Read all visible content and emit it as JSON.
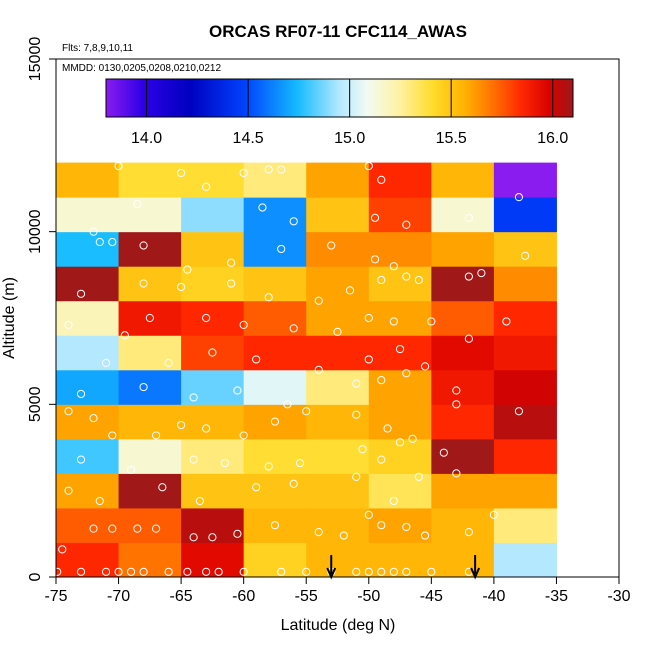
{
  "chart_data": {
    "type": "heatmap",
    "title": "ORCAS RF07-11 CFC114_AWAS",
    "notes": [
      "Flts: 7,8,9,10,11",
      "MMDD: 0130,0205,0208,0210,0212"
    ],
    "xlabel": "Latitude (deg N)",
    "ylabel": "Altitude (m)",
    "xlim": [
      -75,
      -30
    ],
    "ylim": [
      0,
      15000
    ],
    "xticks": [
      -75,
      -70,
      -65,
      -60,
      -55,
      -50,
      -45,
      -40,
      -35,
      -30
    ],
    "xtick_labels": [
      "-75",
      "-70",
      "-65",
      "-60",
      "-55",
      "-50",
      "-45",
      "-40",
      "-35",
      "-30"
    ],
    "yticks": [
      0,
      5000,
      10000,
      15000
    ],
    "ytick_labels": [
      "0",
      "5000",
      "10000",
      "15000"
    ],
    "colorbar": {
      "range": [
        13.8,
        16.1
      ],
      "ticks": [
        14.0,
        14.5,
        15.0,
        15.5,
        16.0
      ],
      "tick_labels": [
        "14.0",
        "14.5",
        "15.0",
        "15.5",
        "16.0"
      ]
    },
    "x_bins": [
      -75,
      -70,
      -65,
      -60,
      -55,
      -50,
      -45,
      -40,
      -35
    ],
    "y_bins": [
      0,
      1000,
      2000,
      3000,
      4000,
      5000,
      6000,
      7000,
      8000,
      9000,
      10000,
      11000,
      12000
    ],
    "cells": [
      [
        15.85,
        15.7,
        15.95,
        15.45,
        15.55,
        15.55,
        15.55,
        14.95
      ],
      [
        15.75,
        15.75,
        16.05,
        15.55,
        15.55,
        15.6,
        15.55,
        15.3
      ],
      [
        15.6,
        16.1,
        15.5,
        15.5,
        15.5,
        15.35,
        15.6,
        15.6
      ],
      [
        14.8,
        15.15,
        15.3,
        15.4,
        15.4,
        15.45,
        16.1,
        15.85
      ],
      [
        15.6,
        15.55,
        15.55,
        15.6,
        15.55,
        15.6,
        15.85,
        16.05
      ],
      [
        14.7,
        14.6,
        14.85,
        15.05,
        15.3,
        15.6,
        15.9,
        16.0
      ],
      [
        14.95,
        15.3,
        15.8,
        15.85,
        15.85,
        15.85,
        15.95,
        15.9
      ],
      [
        15.2,
        15.9,
        15.85,
        15.75,
        15.6,
        15.6,
        15.75,
        15.85
      ],
      [
        16.1,
        15.5,
        15.45,
        15.5,
        15.6,
        15.5,
        16.1,
        15.65
      ],
      [
        14.75,
        16.1,
        15.5,
        14.65,
        15.65,
        15.65,
        15.6,
        15.5
      ],
      [
        15.15,
        15.15,
        14.9,
        14.65,
        15.5,
        15.8,
        15.15,
        14.45
      ],
      [
        15.55,
        15.4,
        15.4,
        15.3,
        15.6,
        15.85,
        15.55,
        13.8
      ]
    ],
    "observations": [
      [
        -74.9,
        150
      ],
      [
        -73.0,
        150
      ],
      [
        -71.0,
        150
      ],
      [
        -70.0,
        150
      ],
      [
        -69.0,
        150
      ],
      [
        -68.0,
        150
      ],
      [
        -66.0,
        150
      ],
      [
        -64.5,
        150
      ],
      [
        -63.0,
        150
      ],
      [
        -62.0,
        150
      ],
      [
        -60.0,
        150
      ],
      [
        -57.0,
        150
      ],
      [
        -55.0,
        150
      ],
      [
        -53.0,
        150
      ],
      [
        -51.0,
        150
      ],
      [
        -50.0,
        150
      ],
      [
        -49.0,
        150
      ],
      [
        -48.0,
        150
      ],
      [
        -47.0,
        150
      ],
      [
        -45.0,
        150
      ],
      [
        -42.0,
        150
      ],
      [
        -74.5,
        800
      ],
      [
        -72.0,
        1400
      ],
      [
        -70.5,
        1400
      ],
      [
        -68.5,
        1400
      ],
      [
        -67.0,
        1400
      ],
      [
        -64.0,
        1150
      ],
      [
        -62.5,
        1150
      ],
      [
        -60.5,
        1250
      ],
      [
        -57.5,
        1500
      ],
      [
        -54.0,
        1300
      ],
      [
        -52.0,
        1200
      ],
      [
        -50.0,
        1800
      ],
      [
        -49.0,
        1500
      ],
      [
        -47.0,
        1450
      ],
      [
        -45.5,
        1200
      ],
      [
        -42.0,
        1300
      ],
      [
        -40.0,
        1800
      ],
      [
        -74.0,
        2500
      ],
      [
        -71.5,
        2200
      ],
      [
        -66.5,
        2600
      ],
      [
        -63.5,
        2200
      ],
      [
        -59.0,
        2600
      ],
      [
        -56.0,
        2700
      ],
      [
        -51.0,
        2900
      ],
      [
        -48.0,
        2200
      ],
      [
        -46.0,
        2900
      ],
      [
        -43.0,
        3000
      ],
      [
        -73.0,
        3400
      ],
      [
        -69.0,
        3100
      ],
      [
        -64.0,
        3400
      ],
      [
        -61.5,
        3300
      ],
      [
        -58.0,
        3200
      ],
      [
        -55.5,
        3300
      ],
      [
        -50.5,
        3700
      ],
      [
        -49.0,
        3400
      ],
      [
        -47.5,
        3900
      ],
      [
        -44.0,
        3600
      ],
      [
        -74.0,
        4800
      ],
      [
        -72.0,
        4600
      ],
      [
        -70.5,
        4100
      ],
      [
        -67.0,
        4100
      ],
      [
        -65.0,
        4400
      ],
      [
        -63.0,
        4300
      ],
      [
        -60.0,
        4100
      ],
      [
        -57.5,
        4500
      ],
      [
        -55.0,
        4800
      ],
      [
        -51.0,
        4700
      ],
      [
        -48.5,
        4300
      ],
      [
        -46.5,
        4000
      ],
      [
        -43.0,
        5000
      ],
      [
        -38.0,
        4800
      ],
      [
        -73.0,
        5300
      ],
      [
        -68.0,
        5500
      ],
      [
        -64.0,
        5200
      ],
      [
        -60.5,
        5400
      ],
      [
        -56.5,
        5000
      ],
      [
        -51.0,
        5600
      ],
      [
        -49.0,
        5700
      ],
      [
        -47.0,
        5900
      ],
      [
        -43.0,
        5400
      ],
      [
        -71.0,
        6200
      ],
      [
        -66.0,
        6200
      ],
      [
        -62.5,
        6500
      ],
      [
        -59.0,
        6300
      ],
      [
        -54.0,
        6000
      ],
      [
        -50.0,
        6300
      ],
      [
        -47.5,
        6600
      ],
      [
        -45.5,
        6100
      ],
      [
        -74.0,
        7300
      ],
      [
        -69.5,
        7000
      ],
      [
        -67.5,
        7500
      ],
      [
        -63.0,
        7500
      ],
      [
        -60.0,
        7300
      ],
      [
        -56.0,
        7200
      ],
      [
        -52.5,
        7100
      ],
      [
        -50.0,
        7500
      ],
      [
        -48.0,
        7400
      ],
      [
        -45.0,
        7400
      ],
      [
        -42.0,
        6900
      ],
      [
        -39.0,
        7400
      ],
      [
        -73.0,
        8200
      ],
      [
        -68.0,
        8500
      ],
      [
        -65.0,
        8400
      ],
      [
        -61.0,
        8500
      ],
      [
        -58.0,
        8100
      ],
      [
        -54.0,
        8000
      ],
      [
        -51.5,
        8300
      ],
      [
        -49.0,
        8600
      ],
      [
        -47.0,
        8700
      ],
      [
        -46.0,
        8600
      ],
      [
        -42.0,
        8700
      ],
      [
        -41.0,
        8800
      ],
      [
        -71.5,
        9700
      ],
      [
        -70.5,
        9700
      ],
      [
        -68.0,
        9600
      ],
      [
        -64.5,
        8900
      ],
      [
        -61.0,
        9100
      ],
      [
        -57.0,
        9500
      ],
      [
        -53.0,
        9600
      ],
      [
        -49.5,
        9200
      ],
      [
        -48.0,
        9000
      ],
      [
        -37.5,
        9300
      ],
      [
        -72.0,
        10000
      ],
      [
        -68.5,
        10800
      ],
      [
        -63.0,
        11300
      ],
      [
        -58.5,
        10700
      ],
      [
        -56.0,
        10300
      ],
      [
        -49.5,
        10400
      ],
      [
        -47.0,
        10200
      ],
      [
        -42.0,
        10400
      ],
      [
        -70.0,
        11900
      ],
      [
        -65.0,
        11700
      ],
      [
        -60.0,
        11700
      ],
      [
        -58.0,
        11800
      ],
      [
        -57.0,
        11800
      ],
      [
        -50.0,
        11900
      ],
      [
        -49.0,
        11500
      ],
      [
        -38.0,
        11000
      ]
    ],
    "arrows": [
      -53,
      -41.5
    ]
  }
}
